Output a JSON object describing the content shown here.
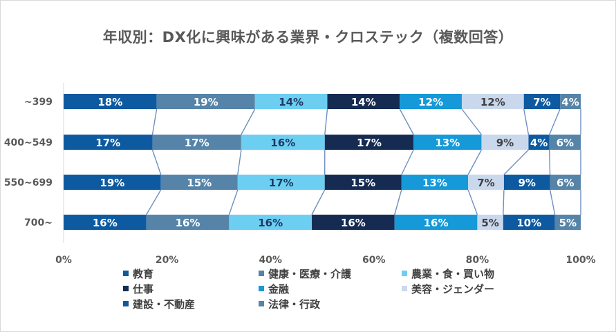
{
  "chart_data": {
    "type": "bar",
    "orientation": "horizontal",
    "stacked": "percent",
    "title": "年収別：DX化に興味がある業界・クロステック（複数回答）",
    "categories": [
      "~399",
      "400~549",
      "550~699",
      "700~"
    ],
    "xlim": [
      0,
      100
    ],
    "x_ticks": [
      "0%",
      "20%",
      "40%",
      "60%",
      "80%",
      "100%"
    ],
    "legend_position": "bottom",
    "series_lines": true,
    "series": [
      {
        "name": "教育",
        "color": "#0e5aa0",
        "values": [
          18,
          17,
          19,
          16
        ],
        "labels": [
          "18%",
          "17%",
          "19%",
          "16%"
        ],
        "label_color": "#ffffff"
      },
      {
        "name": "健康・医療・介護",
        "color": "#5684a8",
        "values": [
          19,
          17,
          15,
          16
        ],
        "labels": [
          "19%",
          "17%",
          "15%",
          "16%"
        ],
        "label_color": "#ffffff"
      },
      {
        "name": "農業・食・買い物",
        "color": "#6ccff2",
        "values": [
          14,
          16,
          17,
          16
        ],
        "labels": [
          "14%",
          "16%",
          "17%",
          "16%"
        ],
        "label_color": "#1f3864"
      },
      {
        "name": "仕事",
        "color": "#152b52",
        "values": [
          14,
          17,
          15,
          16
        ],
        "labels": [
          "14%",
          "17%",
          "15%",
          "16%"
        ],
        "label_color": "#ffffff"
      },
      {
        "name": "金融",
        "color": "#1599d9",
        "values": [
          12,
          13,
          13,
          16
        ],
        "labels": [
          "12%",
          "13%",
          "13%",
          "16%"
        ],
        "label_color": "#ffffff"
      },
      {
        "name": "美容・ジェンダー",
        "color": "#c9d8ec",
        "values": [
          12,
          9,
          7,
          5
        ],
        "labels": [
          "12%",
          "9%",
          "7%",
          "5%"
        ],
        "label_color": "#404040"
      },
      {
        "name": "建設・不動産",
        "color": "#0e5aa0",
        "values": [
          7,
          4,
          9,
          10
        ],
        "labels": [
          "7%",
          "4%",
          "9%",
          "10%"
        ],
        "label_color": "#ffffff"
      },
      {
        "name": "法律・行政",
        "color": "#5684a8",
        "values": [
          4,
          6,
          6,
          5
        ],
        "labels": [
          "4%",
          "6%",
          "6%",
          "5%"
        ],
        "label_color": "#ffffff"
      }
    ]
  }
}
